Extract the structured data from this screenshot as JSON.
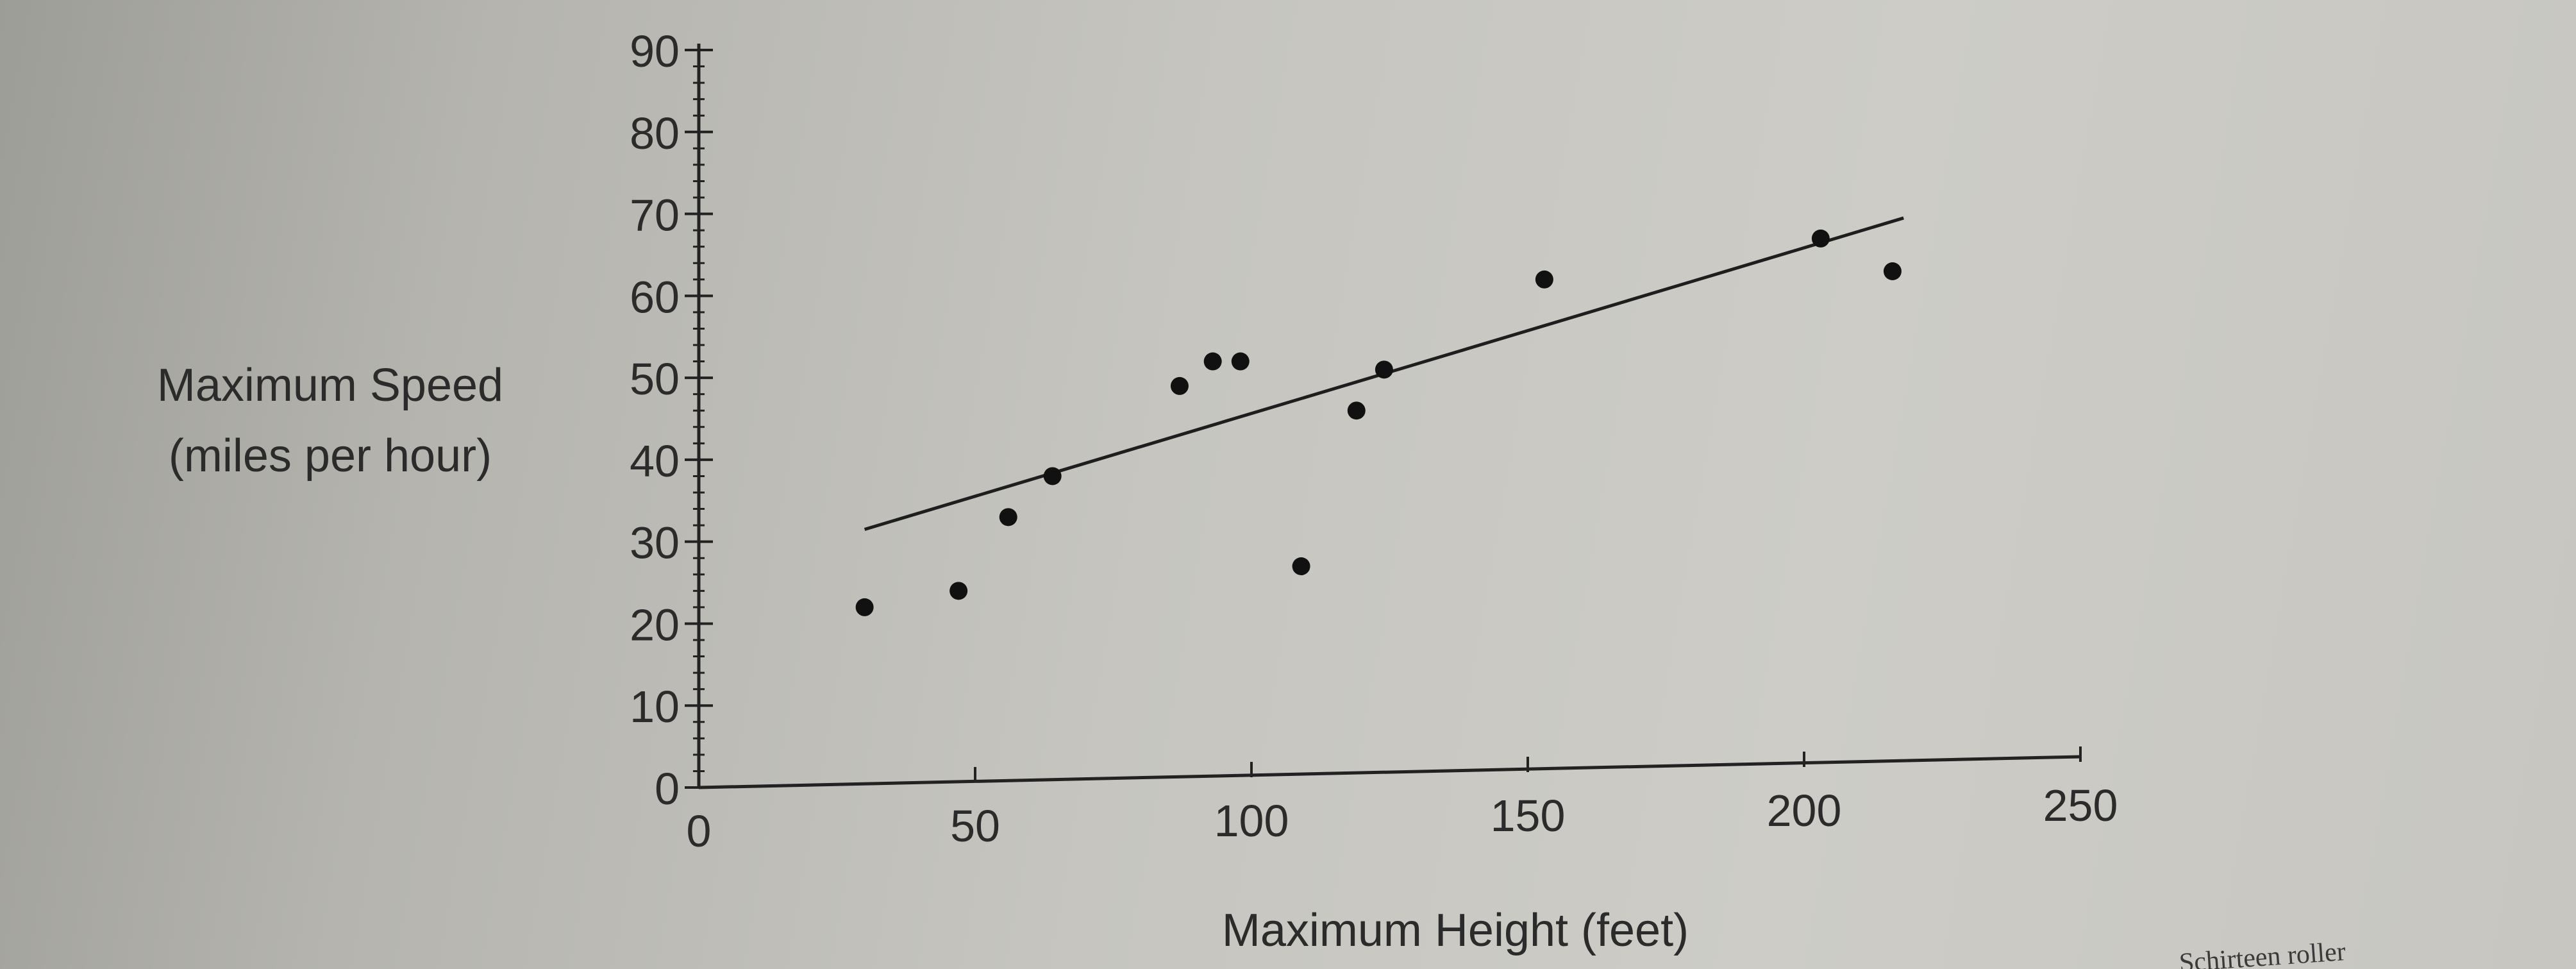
{
  "chart_data": {
    "type": "scatter",
    "xlabel": "Maximum Height (feet)",
    "ylabel_line1": "Maximum Speed",
    "ylabel_line2": "(miles per hour)",
    "xlim": [
      0,
      250
    ],
    "ylim": [
      0,
      90
    ],
    "x_ticks": [
      0,
      50,
      100,
      150,
      200,
      250
    ],
    "y_ticks": [
      0,
      10,
      20,
      30,
      40,
      50,
      60,
      70,
      80,
      90
    ],
    "grid": false,
    "points": [
      {
        "x": 30,
        "y": 22
      },
      {
        "x": 47,
        "y": 24
      },
      {
        "x": 56,
        "y": 33
      },
      {
        "x": 64,
        "y": 38
      },
      {
        "x": 87,
        "y": 49
      },
      {
        "x": 93,
        "y": 52
      },
      {
        "x": 98,
        "y": 52
      },
      {
        "x": 109,
        "y": 27
      },
      {
        "x": 119,
        "y": 46
      },
      {
        "x": 124,
        "y": 51
      },
      {
        "x": 153,
        "y": 62
      },
      {
        "x": 203,
        "y": 67
      },
      {
        "x": 216,
        "y": 63
      }
    ],
    "trend_line": {
      "x": [
        30,
        218
      ],
      "y": [
        31.5,
        69.5
      ]
    }
  },
  "footnote": "Schirteen roller"
}
